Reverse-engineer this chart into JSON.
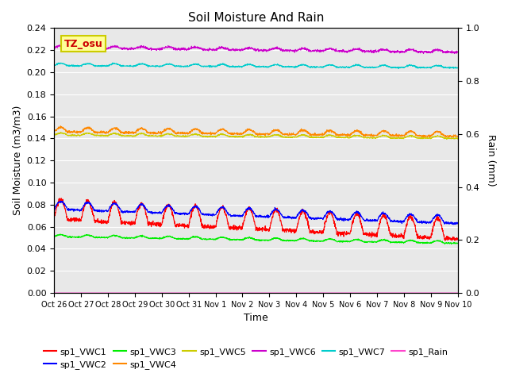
{
  "title": "Soil Moisture And Rain",
  "xlabel": "Time",
  "ylabel_left": "Soil Moisture (m3/m3)",
  "ylabel_right": "Rain (mm)",
  "annotation": "TZ_osu",
  "ylim_left": [
    0.0,
    0.24
  ],
  "ylim_right": [
    0.0,
    1.0
  ],
  "yticks_left": [
    0.0,
    0.02,
    0.04,
    0.06,
    0.08,
    0.1,
    0.12,
    0.14,
    0.16,
    0.18,
    0.2,
    0.22,
    0.24
  ],
  "yticks_right": [
    0.0,
    0.2,
    0.4,
    0.6,
    0.8,
    1.0
  ],
  "x_labels": [
    "Oct 26",
    "Oct 27",
    "Oct 28",
    "Oct 29",
    "Oct 30",
    "Oct 31",
    "Nov 1",
    "Nov 2",
    "Nov 3",
    "Nov 4",
    "Nov 5",
    "Nov 6",
    "Nov 7",
    "Nov 8",
    "Nov 9",
    "Nov 10"
  ],
  "n_points": 2016,
  "series_order": [
    "sp1_VWC1",
    "sp1_VWC2",
    "sp1_VWC3",
    "sp1_VWC4",
    "sp1_VWC5",
    "sp1_VWC6",
    "sp1_VWC7",
    "sp1_Rain"
  ],
  "legend_row1": [
    "sp1_VWC1",
    "sp1_VWC2",
    "sp1_VWC3",
    "sp1_VWC4",
    "sp1_VWC5",
    "sp1_VWC6"
  ],
  "legend_row2": [
    "sp1_VWC7",
    "sp1_Rain"
  ],
  "series": {
    "sp1_VWC1": {
      "color": "#ff0000",
      "base": 0.067,
      "amplitude": 0.018,
      "trend": -0.018,
      "freq": 15,
      "noise": 0.001
    },
    "sp1_VWC2": {
      "color": "#0000ff",
      "base": 0.076,
      "amplitude": 0.007,
      "trend": -0.013,
      "freq": 15,
      "noise": 0.0005
    },
    "sp1_VWC3": {
      "color": "#00ee00",
      "base": 0.051,
      "amplitude": 0.002,
      "trend": -0.006,
      "freq": 15,
      "noise": 0.0003
    },
    "sp1_VWC4": {
      "color": "#ff8800",
      "base": 0.146,
      "amplitude": 0.004,
      "trend": -0.004,
      "freq": 15,
      "noise": 0.0005
    },
    "sp1_VWC5": {
      "color": "#cccc00",
      "base": 0.143,
      "amplitude": 0.002,
      "trend": -0.003,
      "freq": 15,
      "noise": 0.0003
    },
    "sp1_VWC6": {
      "color": "#cc00cc",
      "base": 0.222,
      "amplitude": 0.002,
      "trend": -0.004,
      "freq": 15,
      "noise": 0.0005
    },
    "sp1_VWC7": {
      "color": "#00cccc",
      "base": 0.206,
      "amplitude": 0.002,
      "trend": -0.002,
      "freq": 15,
      "noise": 0.0003
    },
    "sp1_Rain": {
      "color": "#ff44cc",
      "base": 0.0,
      "amplitude": 0.0,
      "trend": 0.0,
      "freq": 0,
      "noise": 0.0
    }
  },
  "background_color": "#e8e8e8",
  "fig_bg": "#ffffff",
  "grid_color": "#ffffff",
  "annotation_bg": "#ffff99",
  "annotation_border": "#cccc00",
  "linewidth": 0.8
}
